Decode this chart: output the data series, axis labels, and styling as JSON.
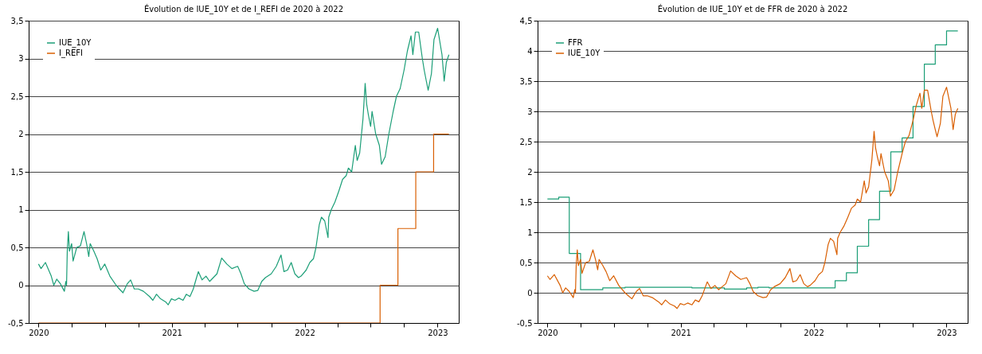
{
  "chart_data": [
    {
      "type": "line",
      "title": "Évolution de IUE_10Y et de I_REFI de 2020 à 2022",
      "legend": "top left",
      "grid": "y",
      "xlim": [
        "2019-12-05",
        "2023-02-28"
      ],
      "xticks": [
        {
          "value": "2020-01-01",
          "label": "2020"
        },
        {
          "value": "2020-04-01",
          "label": null
        },
        {
          "value": "2020-07-01",
          "label": null
        },
        {
          "value": "2020-10-01",
          "label": null
        },
        {
          "value": "2021-01-01",
          "label": "2021"
        },
        {
          "value": "2021-04-01",
          "label": null
        },
        {
          "value": "2021-07-01",
          "label": null
        },
        {
          "value": "2021-10-01",
          "label": null
        },
        {
          "value": "2022-01-01",
          "label": "2022"
        },
        {
          "value": "2022-04-01",
          "label": null
        },
        {
          "value": "2022-07-01",
          "label": null
        },
        {
          "value": "2022-10-01",
          "label": null
        },
        {
          "value": "2023-01-01",
          "label": "2023"
        }
      ],
      "ylim": [
        -0.5,
        3.5
      ],
      "yticks": [
        {
          "value": -0.5,
          "label": "-0,5"
        },
        0,
        {
          "value": 0.5,
          "label": "0,5"
        },
        1,
        {
          "value": 1.5,
          "label": "1,5"
        },
        2,
        {
          "value": 2.5,
          "label": "2,5"
        },
        3,
        {
          "value": 3.5,
          "label": "3,5"
        }
      ],
      "series": [
        {
          "name": "IUE_10Y",
          "type": "line",
          "color": "#1b9e77",
          "x": [
            "2020-01-01",
            "2020-01-08",
            "2020-01-20",
            "2020-02-05",
            "2020-02-12",
            "2020-02-20",
            "2020-03-01",
            "2020-03-12",
            "2020-03-16",
            "2020-03-18",
            "2020-03-20",
            "2020-03-23",
            "2020-03-26",
            "2020-04-01",
            "2020-04-05",
            "2020-04-15",
            "2020-04-25",
            "2020-05-05",
            "2020-05-12",
            "2020-05-18",
            "2020-05-22",
            "2020-06-01",
            "2020-06-10",
            "2020-06-20",
            "2020-07-01",
            "2020-07-15",
            "2020-08-01",
            "2020-08-10",
            "2020-08-20",
            "2020-09-01",
            "2020-09-10",
            "2020-09-20",
            "2020-10-01",
            "2020-10-15",
            "2020-11-01",
            "2020-11-10",
            "2020-11-20",
            "2020-12-01",
            "2020-12-15",
            "2020-12-22",
            "2020-12-31",
            "2021-01-10",
            "2021-01-20",
            "2021-02-01",
            "2021-02-10",
            "2021-02-20",
            "2021-03-01",
            "2021-03-10",
            "2021-03-15",
            "2021-03-25",
            "2021-04-05",
            "2021-04-15",
            "2021-04-25",
            "2021-05-05",
            "2021-05-18",
            "2021-06-01",
            "2021-06-15",
            "2021-07-01",
            "2021-07-10",
            "2021-07-19",
            "2021-08-01",
            "2021-08-15",
            "2021-08-25",
            "2021-09-05",
            "2021-09-15",
            "2021-10-01",
            "2021-10-15",
            "2021-10-28",
            "2021-11-05",
            "2021-11-15",
            "2021-11-25",
            "2021-12-05",
            "2021-12-15",
            "2021-12-22",
            "2022-01-05",
            "2022-01-15",
            "2022-01-25",
            "2022-02-01",
            "2022-02-10",
            "2022-02-16",
            "2022-02-25",
            "2022-03-06",
            "2022-03-08",
            "2022-03-15",
            "2022-03-25",
            "2022-04-05",
            "2022-04-15",
            "2022-04-25",
            "2022-05-01",
            "2022-05-10",
            "2022-05-20",
            "2022-05-25",
            "2022-06-01",
            "2022-06-10",
            "2022-06-16",
            "2022-06-20",
            "2022-06-25",
            "2022-07-01",
            "2022-07-05",
            "2022-07-15",
            "2022-07-25",
            "2022-07-31",
            "2022-08-10",
            "2022-08-20",
            "2022-09-01",
            "2022-09-10",
            "2022-09-20",
            "2022-10-01",
            "2022-10-10",
            "2022-10-20",
            "2022-10-25",
            "2022-11-01",
            "2022-11-10",
            "2022-11-20",
            "2022-11-25",
            "2022-12-01",
            "2022-12-06",
            "2022-12-15",
            "2022-12-22",
            "2023-01-01",
            "2023-01-13",
            "2023-01-19",
            "2023-01-25",
            "2023-02-01"
          ],
          "values": [
            0.28,
            0.22,
            0.3,
            0.12,
            0.0,
            0.08,
            0.02,
            -0.08,
            0.05,
            0.0,
            0.45,
            0.71,
            0.45,
            0.55,
            0.32,
            0.5,
            0.52,
            0.71,
            0.55,
            0.38,
            0.55,
            0.45,
            0.35,
            0.2,
            0.28,
            0.12,
            0.0,
            -0.05,
            -0.1,
            0.02,
            0.07,
            -0.05,
            -0.05,
            -0.08,
            -0.15,
            -0.2,
            -0.12,
            -0.18,
            -0.22,
            -0.26,
            -0.18,
            -0.2,
            -0.17,
            -0.2,
            -0.12,
            -0.15,
            -0.05,
            0.1,
            0.18,
            0.07,
            0.12,
            0.05,
            0.1,
            0.15,
            0.36,
            0.28,
            0.22,
            0.25,
            0.15,
            0.02,
            -0.05,
            -0.08,
            -0.07,
            0.05,
            0.1,
            0.15,
            0.25,
            0.4,
            0.18,
            0.2,
            0.3,
            0.15,
            0.1,
            0.12,
            0.2,
            0.3,
            0.35,
            0.5,
            0.8,
            0.9,
            0.85,
            0.63,
            0.9,
            1.0,
            1.1,
            1.25,
            1.4,
            1.45,
            1.55,
            1.5,
            1.85,
            1.65,
            1.75,
            2.2,
            2.67,
            2.4,
            2.25,
            2.1,
            2.3,
            2.0,
            1.85,
            1.6,
            1.7,
            2.0,
            2.3,
            2.5,
            2.6,
            2.85,
            3.1,
            3.3,
            3.05,
            3.35,
            3.35,
            3.0,
            2.85,
            2.7,
            2.58,
            2.8,
            3.25,
            3.4,
            3.05,
            2.7,
            2.95,
            3.05
          ]
        },
        {
          "name": "I_REFI",
          "type": "step",
          "color": "#d95f02",
          "x": [
            "2020-01-01",
            "2022-07-27",
            "2022-09-14",
            "2022-11-02",
            "2022-12-21",
            "2023-02-01"
          ],
          "values": [
            -0.5,
            0,
            0.75,
            1.5,
            2,
            2
          ]
        }
      ]
    },
    {
      "type": "line",
      "title": "Évolution de IUE_10Y et de FFR de 2020 à 2022",
      "legend": "top left",
      "grid": "y",
      "xlim": [
        "2019-12-05",
        "2023-02-28"
      ],
      "xticks": [
        {
          "value": "2020-01-01",
          "label": "2020"
        },
        {
          "value": "2020-04-01",
          "label": null
        },
        {
          "value": "2020-07-01",
          "label": null
        },
        {
          "value": "2020-10-01",
          "label": null
        },
        {
          "value": "2021-01-01",
          "label": "2021"
        },
        {
          "value": "2021-04-01",
          "label": null
        },
        {
          "value": "2021-07-01",
          "label": null
        },
        {
          "value": "2021-10-01",
          "label": null
        },
        {
          "value": "2022-01-01",
          "label": "2022"
        },
        {
          "value": "2022-04-01",
          "label": null
        },
        {
          "value": "2022-07-01",
          "label": null
        },
        {
          "value": "2022-10-01",
          "label": null
        },
        {
          "value": "2023-01-01",
          "label": "2023"
        }
      ],
      "ylim": [
        -0.5,
        4.5
      ],
      "yticks": [
        {
          "value": -0.5,
          "label": "-0,5"
        },
        0,
        {
          "value": 0.5,
          "label": "0,5"
        },
        1,
        {
          "value": 1.5,
          "label": "1,5"
        },
        2,
        {
          "value": 2.5,
          "label": "2,5"
        },
        3,
        {
          "value": 3.5,
          "label": "3,5"
        },
        4,
        {
          "value": 4.5,
          "label": "4,5"
        }
      ],
      "series": [
        {
          "name": "FFR",
          "type": "step",
          "color": "#1b9e77",
          "x": [
            "2020-01-01",
            "2020-02-01",
            "2020-03-01",
            "2020-04-01",
            "2020-06-01",
            "2020-08-01",
            "2021-02-01",
            "2021-05-01",
            "2021-07-01",
            "2021-08-01",
            "2021-09-01",
            "2022-03-01",
            "2022-04-01",
            "2022-05-01",
            "2022-06-01",
            "2022-07-01",
            "2022-08-01",
            "2022-09-01",
            "2022-10-01",
            "2022-11-01",
            "2022-12-01",
            "2023-01-01",
            "2023-02-01"
          ],
          "values": [
            1.55,
            1.58,
            0.65,
            0.05,
            0.08,
            0.09,
            0.08,
            0.06,
            0.08,
            0.09,
            0.08,
            0.2,
            0.33,
            0.77,
            1.21,
            1.68,
            2.33,
            2.56,
            3.08,
            3.78,
            4.1,
            4.33,
            4.33
          ]
        },
        {
          "name": "IUE_10Y",
          "type": "line",
          "color": "#d95f02",
          "x": [
            "2020-01-01",
            "2020-01-08",
            "2020-01-20",
            "2020-02-05",
            "2020-02-12",
            "2020-02-20",
            "2020-03-01",
            "2020-03-12",
            "2020-03-16",
            "2020-03-18",
            "2020-03-20",
            "2020-03-23",
            "2020-03-26",
            "2020-04-01",
            "2020-04-05",
            "2020-04-15",
            "2020-04-25",
            "2020-05-05",
            "2020-05-12",
            "2020-05-18",
            "2020-05-22",
            "2020-06-01",
            "2020-06-10",
            "2020-06-20",
            "2020-07-01",
            "2020-07-15",
            "2020-08-01",
            "2020-08-10",
            "2020-08-20",
            "2020-09-01",
            "2020-09-10",
            "2020-09-20",
            "2020-10-01",
            "2020-10-15",
            "2020-11-01",
            "2020-11-10",
            "2020-11-20",
            "2020-12-01",
            "2020-12-15",
            "2020-12-22",
            "2020-12-31",
            "2021-01-10",
            "2021-01-20",
            "2021-02-01",
            "2021-02-10",
            "2021-02-20",
            "2021-03-01",
            "2021-03-10",
            "2021-03-15",
            "2021-03-25",
            "2021-04-05",
            "2021-04-15",
            "2021-04-25",
            "2021-05-05",
            "2021-05-18",
            "2021-06-01",
            "2021-06-15",
            "2021-07-01",
            "2021-07-10",
            "2021-07-19",
            "2021-08-01",
            "2021-08-15",
            "2021-08-25",
            "2021-09-05",
            "2021-09-15",
            "2021-10-01",
            "2021-10-15",
            "2021-10-28",
            "2021-11-05",
            "2021-11-15",
            "2021-11-25",
            "2021-12-05",
            "2021-12-15",
            "2021-12-22",
            "2022-01-05",
            "2022-01-15",
            "2022-01-25",
            "2022-02-01",
            "2022-02-10",
            "2022-02-16",
            "2022-02-25",
            "2022-03-06",
            "2022-03-08",
            "2022-03-15",
            "2022-03-25",
            "2022-04-05",
            "2022-04-15",
            "2022-04-25",
            "2022-05-01",
            "2022-05-10",
            "2022-05-20",
            "2022-05-25",
            "2022-06-01",
            "2022-06-10",
            "2022-06-16",
            "2022-06-20",
            "2022-06-25",
            "2022-07-01",
            "2022-07-05",
            "2022-07-15",
            "2022-07-25",
            "2022-07-31",
            "2022-08-10",
            "2022-08-20",
            "2022-09-01",
            "2022-09-10",
            "2022-09-20",
            "2022-10-01",
            "2022-10-10",
            "2022-10-20",
            "2022-10-25",
            "2022-11-01",
            "2022-11-10",
            "2022-11-20",
            "2022-11-25",
            "2022-12-01",
            "2022-12-06",
            "2022-12-15",
            "2022-12-22",
            "2023-01-01",
            "2023-01-13",
            "2023-01-19",
            "2023-01-25",
            "2023-02-01"
          ],
          "values": [
            0.28,
            0.22,
            0.3,
            0.12,
            0.0,
            0.08,
            0.02,
            -0.08,
            0.05,
            0.0,
            0.45,
            0.71,
            0.45,
            0.55,
            0.32,
            0.5,
            0.52,
            0.71,
            0.55,
            0.38,
            0.55,
            0.45,
            0.35,
            0.2,
            0.28,
            0.12,
            0.0,
            -0.05,
            -0.1,
            0.02,
            0.07,
            -0.05,
            -0.05,
            -0.08,
            -0.15,
            -0.2,
            -0.12,
            -0.18,
            -0.22,
            -0.26,
            -0.18,
            -0.2,
            -0.17,
            -0.2,
            -0.12,
            -0.15,
            -0.05,
            0.1,
            0.18,
            0.07,
            0.12,
            0.05,
            0.1,
            0.15,
            0.36,
            0.28,
            0.22,
            0.25,
            0.15,
            0.02,
            -0.05,
            -0.08,
            -0.07,
            0.05,
            0.1,
            0.15,
            0.25,
            0.4,
            0.18,
            0.2,
            0.3,
            0.15,
            0.1,
            0.12,
            0.2,
            0.3,
            0.35,
            0.5,
            0.8,
            0.9,
            0.85,
            0.63,
            0.9,
            1.0,
            1.1,
            1.25,
            1.4,
            1.45,
            1.55,
            1.5,
            1.85,
            1.65,
            1.75,
            2.2,
            2.67,
            2.4,
            2.25,
            2.1,
            2.3,
            2.0,
            1.85,
            1.6,
            1.7,
            2.0,
            2.3,
            2.5,
            2.6,
            2.85,
            3.1,
            3.3,
            3.05,
            3.35,
            3.35,
            3.0,
            2.85,
            2.7,
            2.58,
            2.8,
            3.25,
            3.4,
            3.05,
            2.7,
            2.95,
            3.05
          ]
        }
      ]
    }
  ]
}
